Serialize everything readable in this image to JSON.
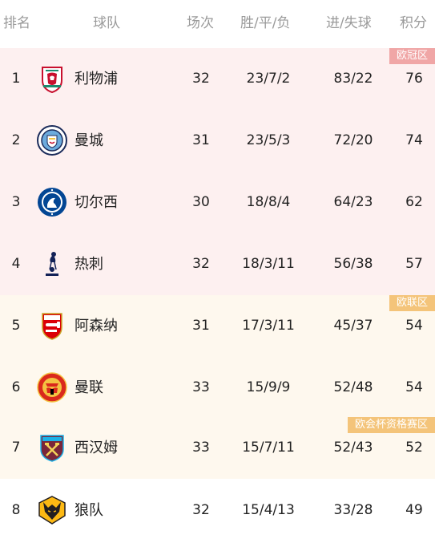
{
  "header": {
    "rank": "排名",
    "team": "球队",
    "played": "场次",
    "wdl": "胜/平/负",
    "goals": "进/失球",
    "points": "积分"
  },
  "zones": {
    "champions_league": "欧冠区",
    "europa_league": "欧联区",
    "conference_league": "欧会杯资格赛区"
  },
  "rows": [
    {
      "rank": "1",
      "team": "利物浦",
      "played": "32",
      "wdl": "23/7/2",
      "goals": "83/22",
      "points": "76",
      "crest_icon": "liverpool-crest-icon"
    },
    {
      "rank": "2",
      "team": "曼城",
      "played": "31",
      "wdl": "23/5/3",
      "goals": "72/20",
      "points": "74",
      "crest_icon": "man-city-crest-icon"
    },
    {
      "rank": "3",
      "team": "切尔西",
      "played": "30",
      "wdl": "18/8/4",
      "goals": "64/23",
      "points": "62",
      "crest_icon": "chelsea-crest-icon"
    },
    {
      "rank": "4",
      "team": "热刺",
      "played": "32",
      "wdl": "18/3/11",
      "goals": "56/38",
      "points": "57",
      "crest_icon": "tottenham-crest-icon"
    },
    {
      "rank": "5",
      "team": "阿森纳",
      "played": "31",
      "wdl": "17/3/11",
      "goals": "45/37",
      "points": "54",
      "crest_icon": "arsenal-crest-icon"
    },
    {
      "rank": "6",
      "team": "曼联",
      "played": "33",
      "wdl": "15/9/9",
      "goals": "52/48",
      "points": "54",
      "crest_icon": "man-united-crest-icon"
    },
    {
      "rank": "7",
      "team": "西汉姆",
      "played": "33",
      "wdl": "15/7/11",
      "goals": "52/43",
      "points": "52",
      "crest_icon": "west-ham-crest-icon"
    },
    {
      "rank": "8",
      "team": "狼队",
      "played": "32",
      "wdl": "15/4/13",
      "goals": "33/28",
      "points": "49",
      "crest_icon": "wolves-crest-icon"
    }
  ],
  "colors": {
    "champions_league_bg": "#fdf0f0",
    "champions_league_tag": "#f0a6a6",
    "europa_bg": "#fef8ee",
    "europa_tag": "#f4c47a",
    "header_text": "#9a9a9a",
    "text": "#222222"
  }
}
